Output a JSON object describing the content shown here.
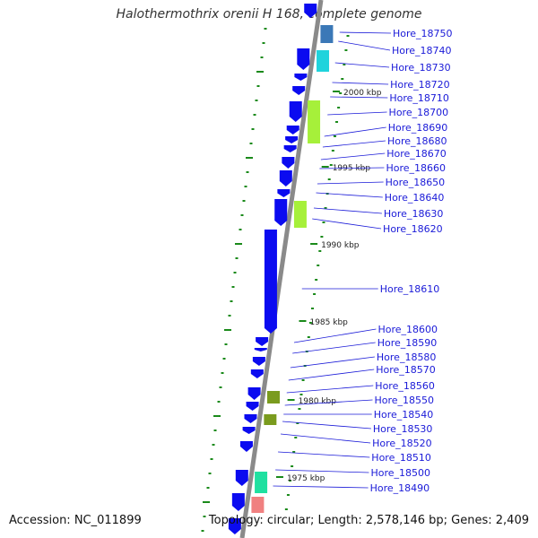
{
  "title": "Halothermothrix orenii H 168, complete genome",
  "accession": "Accession: NC_011899",
  "topology": "Topology: circular; Length: 2,578,146 bp; Genes: 2,409",
  "colors": {
    "backbone": "#8a8a8a",
    "gene_default": "#0b0bf0",
    "label": "#1a1ad8",
    "tick": "#1a8a1a",
    "steelblue": "#3b78b7",
    "cyan": "#1fd3dc",
    "lime": "#a6f03a",
    "olive": "#7a9b1e",
    "teal": "#1fe0a0",
    "salmon": "#f08080"
  },
  "kbp_ticks": [
    {
      "pos_kbp": 2000,
      "label": "2000 kbp"
    },
    {
      "pos_kbp": 1995,
      "label": "1995 kbp"
    },
    {
      "pos_kbp": 1990,
      "label": "1990 kbp"
    },
    {
      "pos_kbp": 1985,
      "label": "1985 kbp"
    },
    {
      "pos_kbp": 1980,
      "label": "1980 kbp"
    },
    {
      "pos_kbp": 1975,
      "label": "1975 kbp"
    }
  ],
  "genes": [
    {
      "label": "Hore_18750",
      "color": "steelblue"
    },
    {
      "label": "Hore_18740",
      "color": "blue"
    },
    {
      "label": "Hore_18730",
      "color": "cyan"
    },
    {
      "label": "Hore_18720",
      "color": "blue"
    },
    {
      "label": "Hore_18710",
      "color": "blue"
    },
    {
      "label": "Hore_18700",
      "color": "lime"
    },
    {
      "label": "Hore_18690",
      "color": "blue"
    },
    {
      "label": "Hore_18680",
      "color": "blue"
    },
    {
      "label": "Hore_18670",
      "color": "blue"
    },
    {
      "label": "Hore_18660",
      "color": "blue"
    },
    {
      "label": "Hore_18650",
      "color": "blue"
    },
    {
      "label": "Hore_18640",
      "color": "blue"
    },
    {
      "label": "Hore_18630",
      "color": "lime"
    },
    {
      "label": "Hore_18620",
      "color": "blue"
    },
    {
      "label": "Hore_18610",
      "color": "blue"
    },
    {
      "label": "Hore_18600",
      "color": "blue"
    },
    {
      "label": "Hore_18590",
      "color": "blue"
    },
    {
      "label": "Hore_18580",
      "color": "blue"
    },
    {
      "label": "Hore_18570",
      "color": "blue"
    },
    {
      "label": "Hore_18560",
      "color": "blue"
    },
    {
      "label": "Hore_18550",
      "color": "olive"
    },
    {
      "label": "Hore_18540",
      "color": "olive"
    },
    {
      "label": "Hore_18530",
      "color": "blue"
    },
    {
      "label": "Hore_18520",
      "color": "blue"
    },
    {
      "label": "Hore_18510",
      "color": "blue"
    },
    {
      "label": "Hore_18500",
      "color": "teal"
    },
    {
      "label": "Hore_18490",
      "color": "salmon"
    }
  ]
}
